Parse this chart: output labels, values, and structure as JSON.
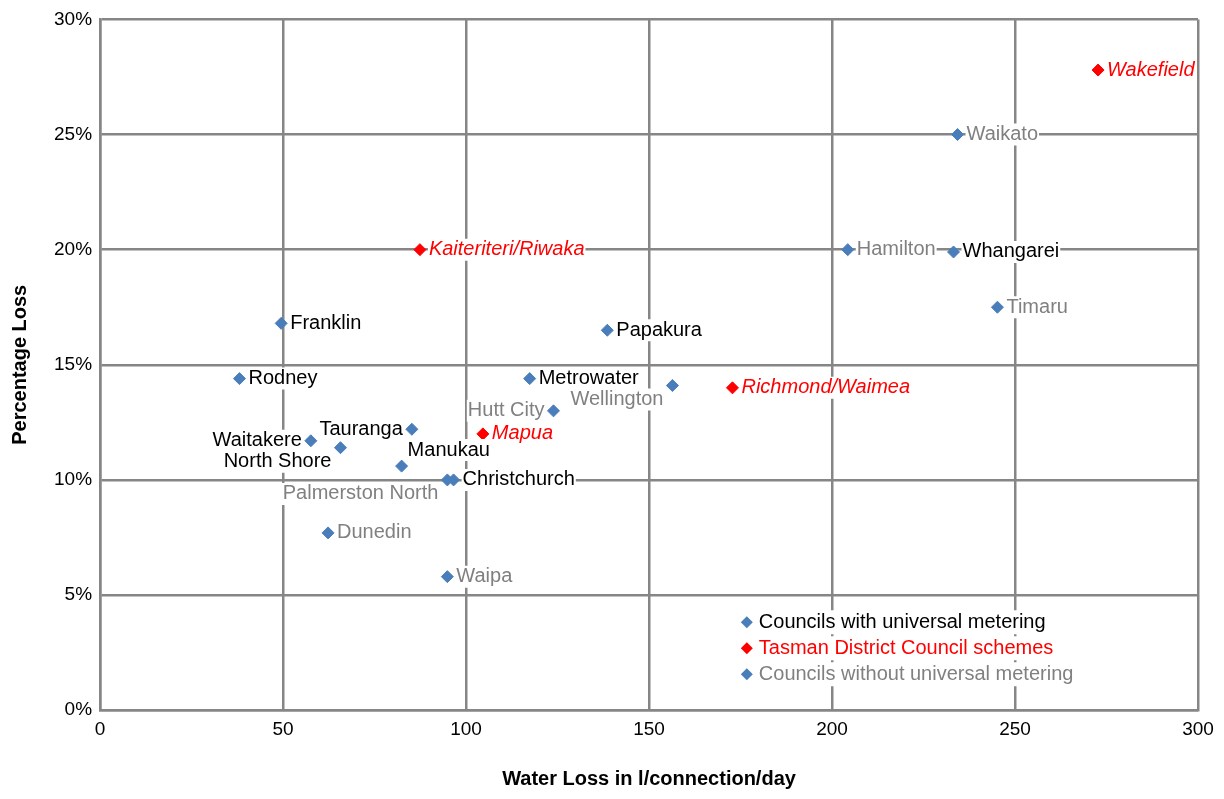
{
  "chart_data": {
    "type": "scatter",
    "xlabel": "Water Loss in l/connection/day",
    "ylabel": "Percentage Loss",
    "xlim": [
      0,
      300
    ],
    "xticks": [
      0,
      50,
      100,
      150,
      200,
      250,
      300
    ],
    "ylim": [
      0,
      30
    ],
    "yticks": [
      {
        "value": 0,
        "label": "0%"
      },
      {
        "value": 5,
        "label": "5%"
      },
      {
        "value": 10,
        "label": "10%"
      },
      {
        "value": 15,
        "label": "15%"
      },
      {
        "value": 20,
        "label": "20%"
      },
      {
        "value": 25,
        "label": "25%"
      },
      {
        "value": 30,
        "label": "30%"
      }
    ],
    "grid": true,
    "marker": "diamond",
    "legend": "bottom right",
    "series": [
      {
        "name": "Councils with universal metering",
        "color": "#4a7ebb",
        "x": [
          233.2,
          49.5,
          138.6,
          38.1,
          117.4,
          85.2,
          57.6,
          65.7,
          82.4,
          96.6
        ],
        "values": [
          19.9,
          16.8,
          16.5,
          14.4,
          14.4,
          12.2,
          11.7,
          11.4,
          10.6,
          10.0
        ]
      },
      {
        "name": "Tasman District Council schemes",
        "color": "#ff0000",
        "x": [
          272.7,
          87.4,
          172.8,
          104.6
        ],
        "values": [
          27.8,
          20.0,
          14.0,
          12.0
        ]
      },
      {
        "name": "Councils without universal metering",
        "color": "#4a7ebb",
        "x": [
          234.3,
          204.3,
          245.2,
          156.4,
          123.9,
          94.9,
          62.3,
          94.9
        ],
        "values": [
          25.0,
          20.0,
          17.5,
          14.1,
          13.0,
          10.0,
          7.7,
          5.8
        ]
      }
    ],
    "annotations": [
      {
        "text": "Whangarei",
        "x": 233.2,
        "y": 19.9
      },
      {
        "text": "Franklin",
        "x": 49.5,
        "y": 16.8
      },
      {
        "text": "Papakura",
        "x": 138.6,
        "y": 16.5
      },
      {
        "text": "Rodney",
        "x": 38.1,
        "y": 14.4
      },
      {
        "text": "Metrowater",
        "x": 117.4,
        "y": 14.4
      },
      {
        "text": "Tauranga",
        "x": 85.2,
        "y": 12.2
      },
      {
        "text": "Waitakere",
        "x": 57.6,
        "y": 11.7
      },
      {
        "text": "North Shore",
        "x": 65.7,
        "y": 11.4
      },
      {
        "text": "Manukau",
        "x": 82.4,
        "y": 10.6
      },
      {
        "text": "Christchurch",
        "x": 96.6,
        "y": 10.0
      },
      {
        "text": "Wakefield",
        "x": 272.7,
        "y": 27.8
      },
      {
        "text": "Kaiteriteri/Riwaka",
        "x": 87.4,
        "y": 20.0
      },
      {
        "text": "Richmond/Waimea",
        "x": 172.8,
        "y": 14.0
      },
      {
        "text": "Mapua",
        "x": 104.6,
        "y": 12.0
      },
      {
        "text": "Waikato",
        "x": 234.3,
        "y": 25.0
      },
      {
        "text": "Hamilton",
        "x": 204.3,
        "y": 20.0
      },
      {
        "text": "Timaru",
        "x": 245.2,
        "y": 17.5
      },
      {
        "text": "Wellington",
        "x": 156.4,
        "y": 14.1
      },
      {
        "text": "Hutt City",
        "x": 123.9,
        "y": 13.0
      },
      {
        "text": "Palmerston North",
        "x": 94.9,
        "y": 10.0
      },
      {
        "text": "Dunedin",
        "x": 62.3,
        "y": 7.7
      },
      {
        "text": "Waipa",
        "x": 94.9,
        "y": 5.8
      }
    ]
  }
}
